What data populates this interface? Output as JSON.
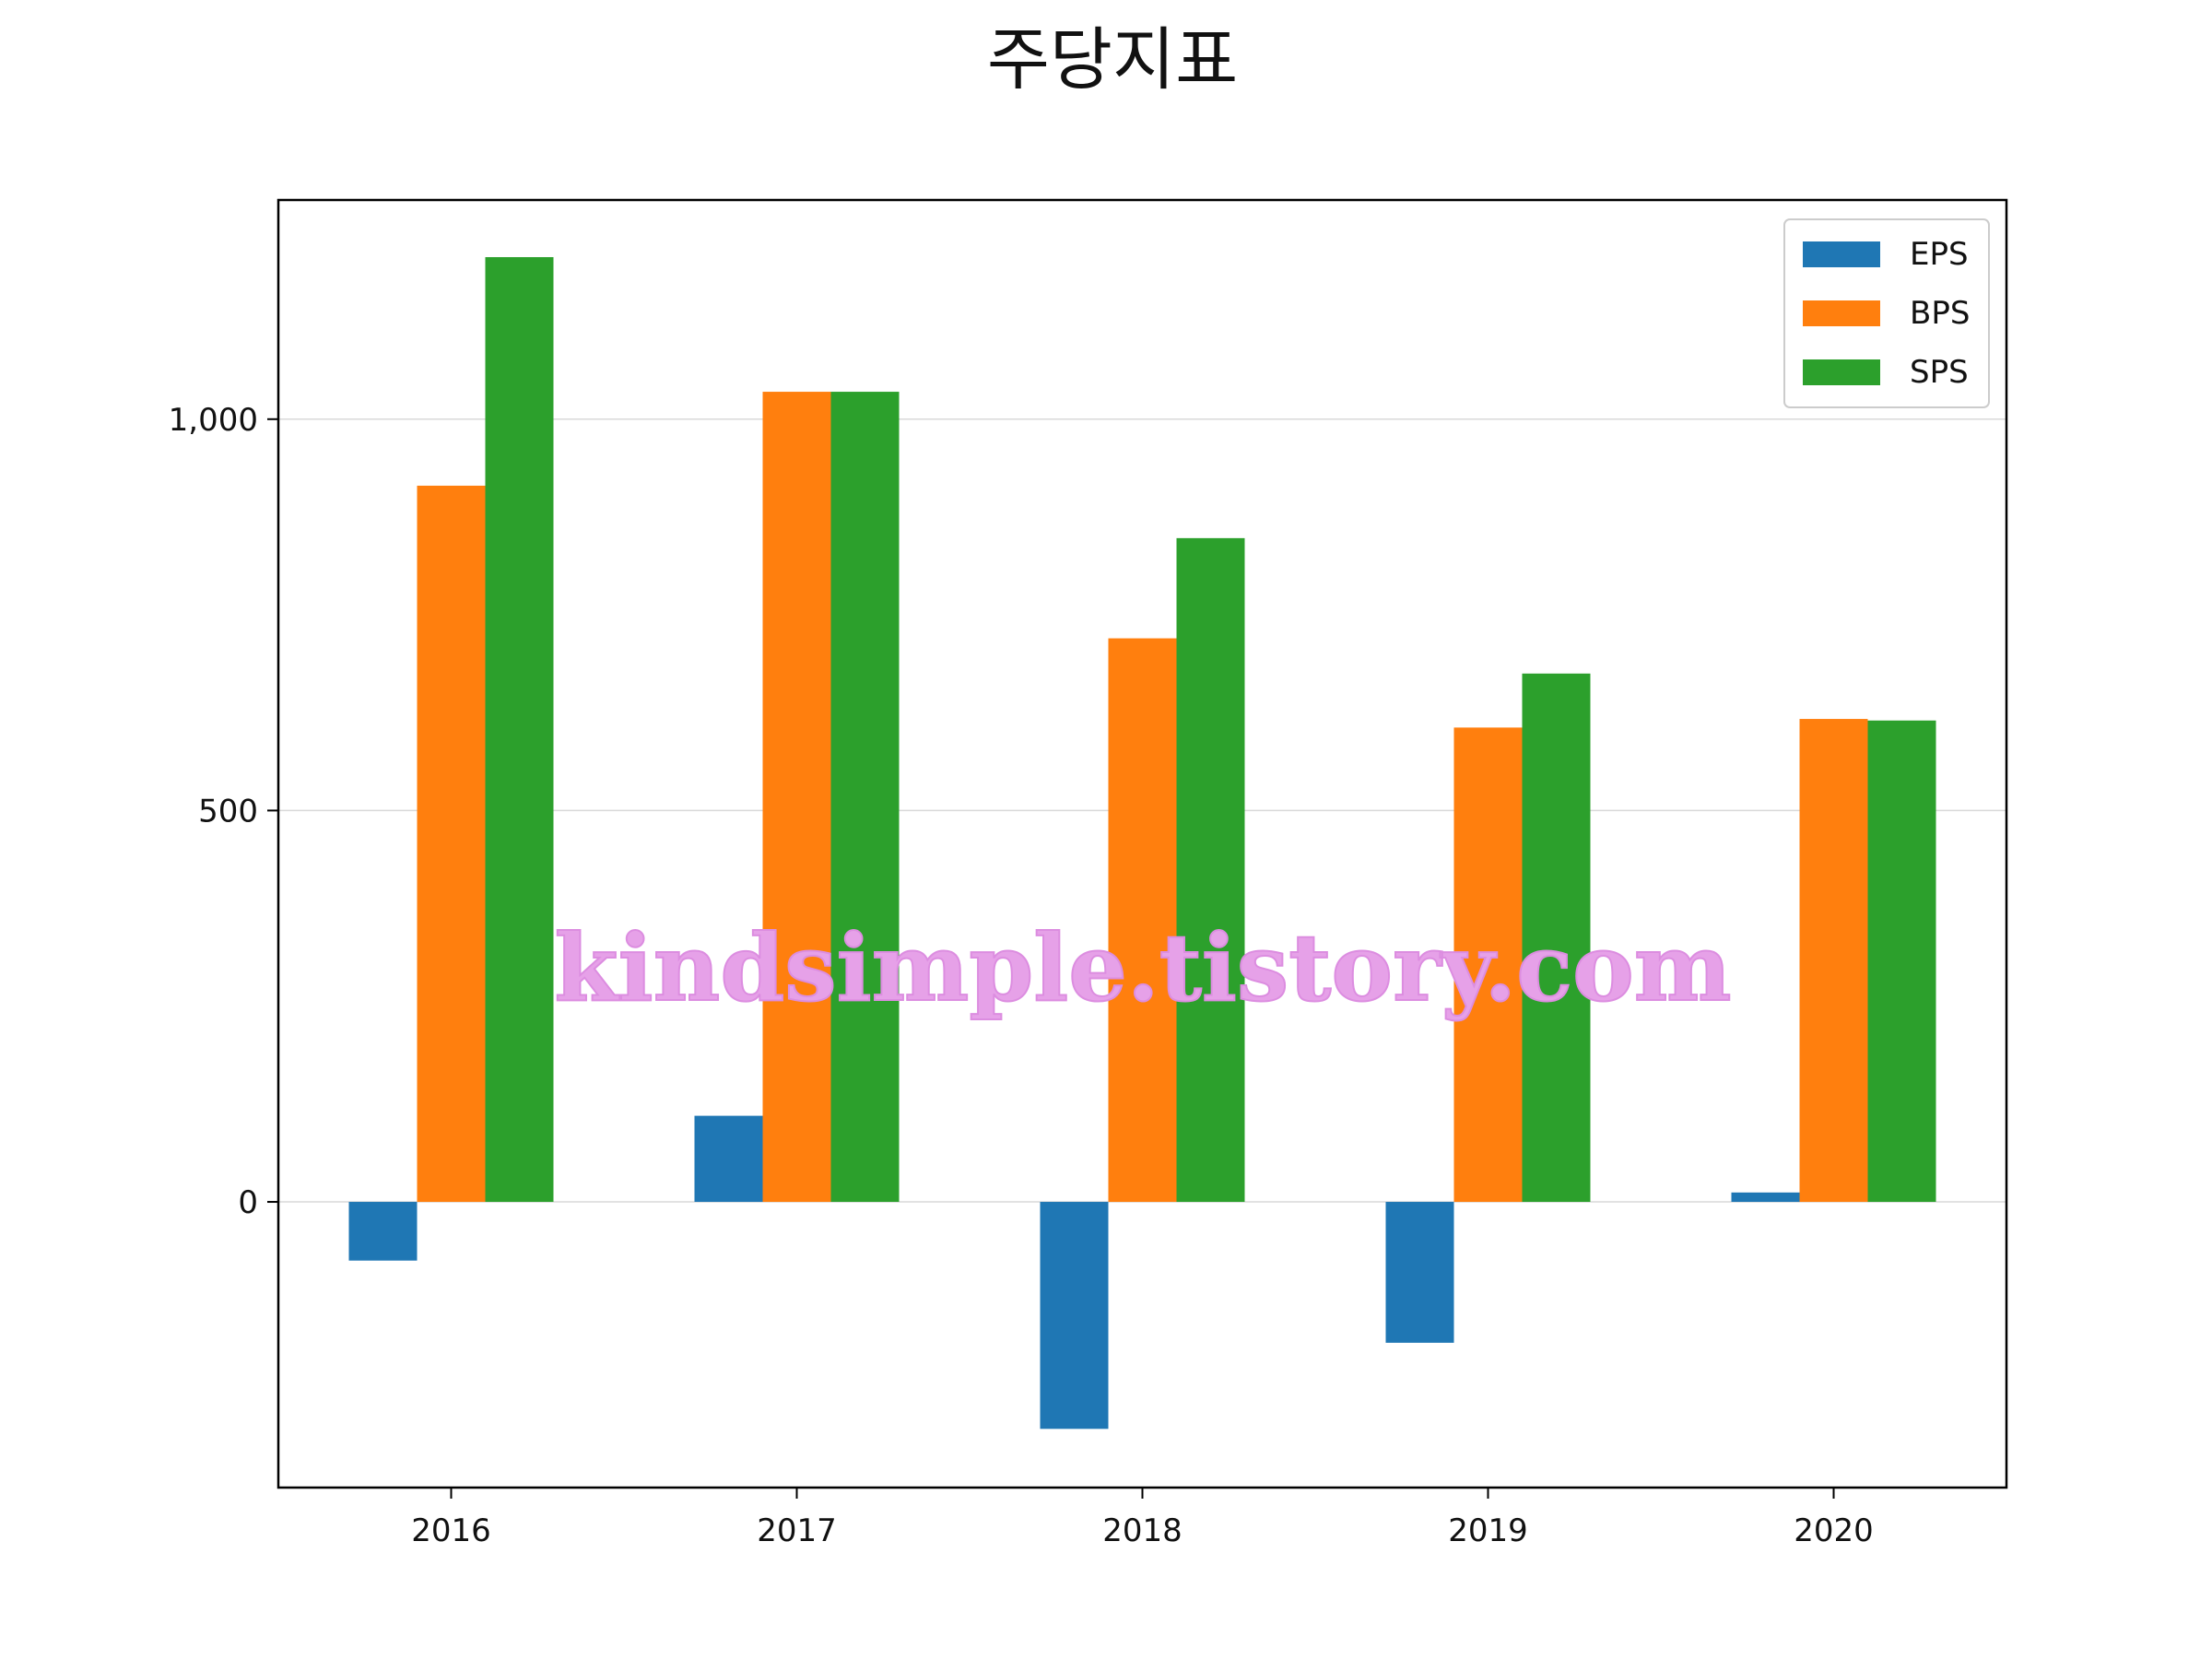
{
  "chart_data": {
    "type": "bar",
    "title": "주당지표",
    "xlabel": "",
    "ylabel": "",
    "categories": [
      "2016",
      "2017",
      "2018",
      "2019",
      "2020"
    ],
    "series": [
      {
        "name": "EPS",
        "color": "#1f77b4",
        "values": [
          -75,
          110,
          -290,
          -180,
          12
        ]
      },
      {
        "name": "BPS",
        "color": "#ff7f0e",
        "values": [
          915,
          1035,
          720,
          606,
          617
        ]
      },
      {
        "name": "SPS",
        "color": "#2ca02c",
        "values": [
          1207,
          1035,
          848,
          675,
          615
        ]
      }
    ],
    "ylim": [
      -365,
      1280
    ],
    "yticks": [
      0,
      500,
      1000
    ],
    "ytick_labels": [
      "0",
      "500",
      "1,000"
    ],
    "grid": "y-major",
    "legend_position": "upper right"
  },
  "watermark": {
    "text": "kindsimple.tistory.com"
  }
}
